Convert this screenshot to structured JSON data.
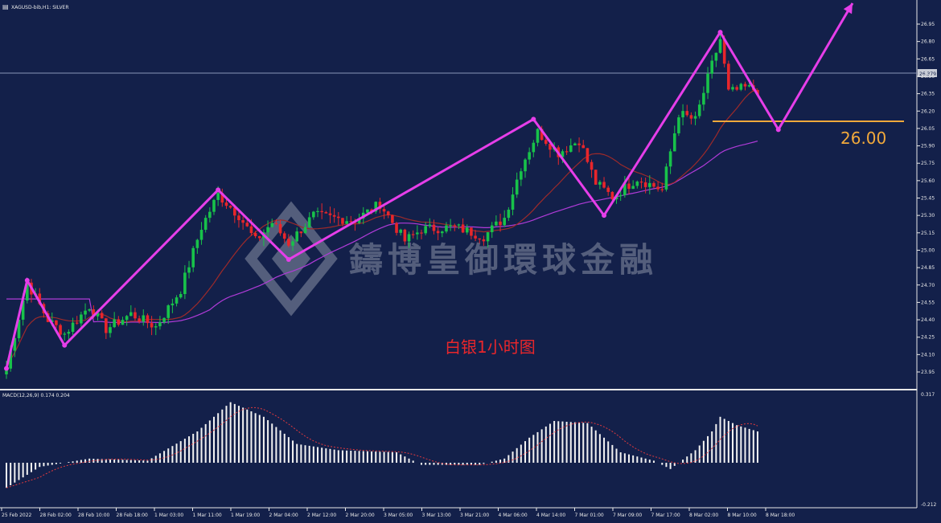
{
  "header": {
    "symbol_title": "XAGUSD-bib,H1: SILVER",
    "macd_label": "MACD(12,26,9) 0.174 0.204"
  },
  "overlay": {
    "caption": "白银1小时图",
    "level_label": "26.00",
    "watermark": "鑄博皇御環球金融"
  },
  "colors": {
    "background": "#13204a",
    "bull": "#18c24a",
    "bear": "#e8262b",
    "zigzag": "#e63ee9",
    "level": "#f2a93b",
    "ma_slow": "#b03bd8",
    "ma_fast": "#9e2a2a",
    "macd_hist": "#f2f2f2",
    "macd_signal": "#e0393e"
  },
  "chart_data": {
    "type": "candlestick",
    "price_axis_ticks": [
      "26.95",
      "26.80",
      "26.65",
      "26.50",
      "26.35",
      "26.20",
      "26.05",
      "25.90",
      "25.75",
      "25.60",
      "25.45",
      "25.30",
      "25.15",
      "25.00",
      "24.85",
      "24.70",
      "24.55",
      "24.40",
      "24.25",
      "24.10",
      "23.95"
    ],
    "current_price": "26.379",
    "macd_axis_ticks": [
      "0.317",
      "-0.212"
    ],
    "time_axis_ticks": [
      "25 Feb 2022",
      "28 Feb 02:00",
      "28 Feb 10:00",
      "28 Feb 18:00",
      "1 Mar 03:00",
      "1 Mar 11:00",
      "1 Mar 19:00",
      "2 Mar 04:00",
      "2 Mar 12:00",
      "2 Mar 20:00",
      "3 Mar 05:00",
      "3 Mar 13:00",
      "3 Mar 21:00",
      "4 Mar 06:00",
      "4 Mar 14:00",
      "7 Mar 01:00",
      "7 Mar 09:00",
      "7 Mar 17:00",
      "8 Mar 02:00",
      "8 Mar 10:00",
      "8 Mar 18:00"
    ],
    "level": 26.0,
    "zigzag_points": [
      {
        "i": 0,
        "p": 23.98
      },
      {
        "i": 5,
        "p": 24.74
      },
      {
        "i": 14,
        "p": 24.18
      },
      {
        "i": 51,
        "p": 25.52
      },
      {
        "i": 68,
        "p": 24.92
      },
      {
        "i": 127,
        "p": 26.13
      },
      {
        "i": 144,
        "p": 25.3
      },
      {
        "i": 172,
        "p": 26.88
      },
      {
        "i": 186,
        "p": 26.04
      },
      {
        "i": 199,
        "p": 26.99
      }
    ],
    "price_keypoints": [
      {
        "i": 0,
        "p": 23.98
      },
      {
        "i": 5,
        "p": 24.72
      },
      {
        "i": 10,
        "p": 24.4
      },
      {
        "i": 14,
        "p": 24.28
      },
      {
        "i": 20,
        "p": 24.52
      },
      {
        "i": 24,
        "p": 24.32
      },
      {
        "i": 30,
        "p": 24.45
      },
      {
        "i": 36,
        "p": 24.34
      },
      {
        "i": 42,
        "p": 24.66
      },
      {
        "i": 47,
        "p": 25.2
      },
      {
        "i": 51,
        "p": 25.48
      },
      {
        "i": 56,
        "p": 25.3
      },
      {
        "i": 60,
        "p": 25.08
      },
      {
        "i": 64,
        "p": 25.24
      },
      {
        "i": 68,
        "p": 25.06
      },
      {
        "i": 74,
        "p": 25.3
      },
      {
        "i": 78,
        "p": 25.28
      },
      {
        "i": 84,
        "p": 25.26
      },
      {
        "i": 90,
        "p": 25.4
      },
      {
        "i": 96,
        "p": 25.08
      },
      {
        "i": 100,
        "p": 25.18
      },
      {
        "i": 108,
        "p": 25.2
      },
      {
        "i": 115,
        "p": 25.12
      },
      {
        "i": 120,
        "p": 25.28
      },
      {
        "i": 124,
        "p": 25.72
      },
      {
        "i": 128,
        "p": 26.02
      },
      {
        "i": 133,
        "p": 25.84
      },
      {
        "i": 138,
        "p": 25.95
      },
      {
        "i": 142,
        "p": 25.58
      },
      {
        "i": 146,
        "p": 25.46
      },
      {
        "i": 152,
        "p": 25.62
      },
      {
        "i": 158,
        "p": 25.52
      },
      {
        "i": 162,
        "p": 26.18
      },
      {
        "i": 166,
        "p": 26.12
      },
      {
        "i": 170,
        "p": 26.6
      },
      {
        "i": 172,
        "p": 26.82
      },
      {
        "i": 174,
        "p": 26.36
      },
      {
        "i": 178,
        "p": 26.4
      },
      {
        "i": 181,
        "p": 26.38
      }
    ],
    "macd_keypoints": [
      {
        "i": 0,
        "v": -0.12
      },
      {
        "i": 8,
        "v": -0.02
      },
      {
        "i": 20,
        "v": 0.02
      },
      {
        "i": 34,
        "v": 0.01
      },
      {
        "i": 46,
        "v": 0.15
      },
      {
        "i": 54,
        "v": 0.29
      },
      {
        "i": 62,
        "v": 0.22
      },
      {
        "i": 70,
        "v": 0.09
      },
      {
        "i": 80,
        "v": 0.06
      },
      {
        "i": 94,
        "v": 0.05
      },
      {
        "i": 100,
        "v": -0.01
      },
      {
        "i": 114,
        "v": -0.01
      },
      {
        "i": 120,
        "v": 0.02
      },
      {
        "i": 126,
        "v": 0.12
      },
      {
        "i": 132,
        "v": 0.2
      },
      {
        "i": 140,
        "v": 0.19
      },
      {
        "i": 148,
        "v": 0.05
      },
      {
        "i": 156,
        "v": 0.01
      },
      {
        "i": 160,
        "v": -0.03
      },
      {
        "i": 166,
        "v": 0.06
      },
      {
        "i": 170,
        "v": 0.15
      },
      {
        "i": 172,
        "v": 0.22
      },
      {
        "i": 176,
        "v": 0.18
      },
      {
        "i": 181,
        "v": 0.15
      }
    ]
  }
}
